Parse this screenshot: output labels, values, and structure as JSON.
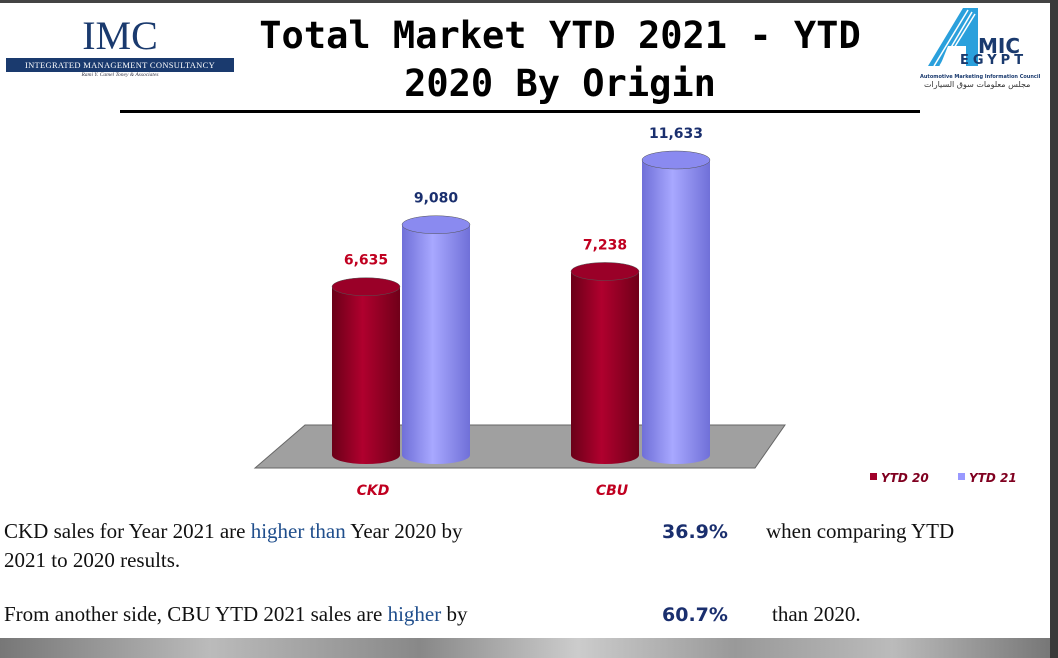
{
  "header": {
    "title_line1": "Total Market YTD 2021 - YTD",
    "title_line2": "2020 By Origin",
    "left_logo": {
      "mark": "IMC",
      "band": "Integrated Management Consultancy",
      "sub": "Rami Y. Camel Toney & Associates"
    },
    "right_logo": {
      "mark_a": "A",
      "mark": "MIC",
      "sub": "EGYPT",
      "en": "Automotive Marketing Information Council",
      "ar": "مجلس معلومات سوق السيارات"
    }
  },
  "chart_data": {
    "type": "bar",
    "style": "3d-cylinder",
    "title": "Total Market YTD 2021 - YTD 2020 By Origin",
    "categories": [
      "CKD",
      "CBU"
    ],
    "series": [
      {
        "name": "YTD 20",
        "color": "#a0002a",
        "values": [
          6635,
          7238
        ],
        "labels": [
          "6,635",
          "7,238"
        ]
      },
      {
        "name": "YTD 21",
        "color": "#9999ff",
        "values": [
          9080,
          11633
        ],
        "labels": [
          "9,080",
          "11,633"
        ]
      }
    ],
    "legend_position": "bottom-right",
    "grid": false
  },
  "text": {
    "p1_a": "CKD  sales  for  Year  2021  are",
    "p1_hl": "higher than",
    "p1_b": "Year  2020 by",
    "p1_pct": "36.9%",
    "p1_c": "when comparing YTD",
    "p1_d": "2021 to 2020 results.",
    "p2_a": "From  another  side,  CBU  YTD  2021  sales  are",
    "p2_hl": "higher",
    "p2_b": "by",
    "p2_pct": "60.7%",
    "p2_c": "than 2020."
  }
}
